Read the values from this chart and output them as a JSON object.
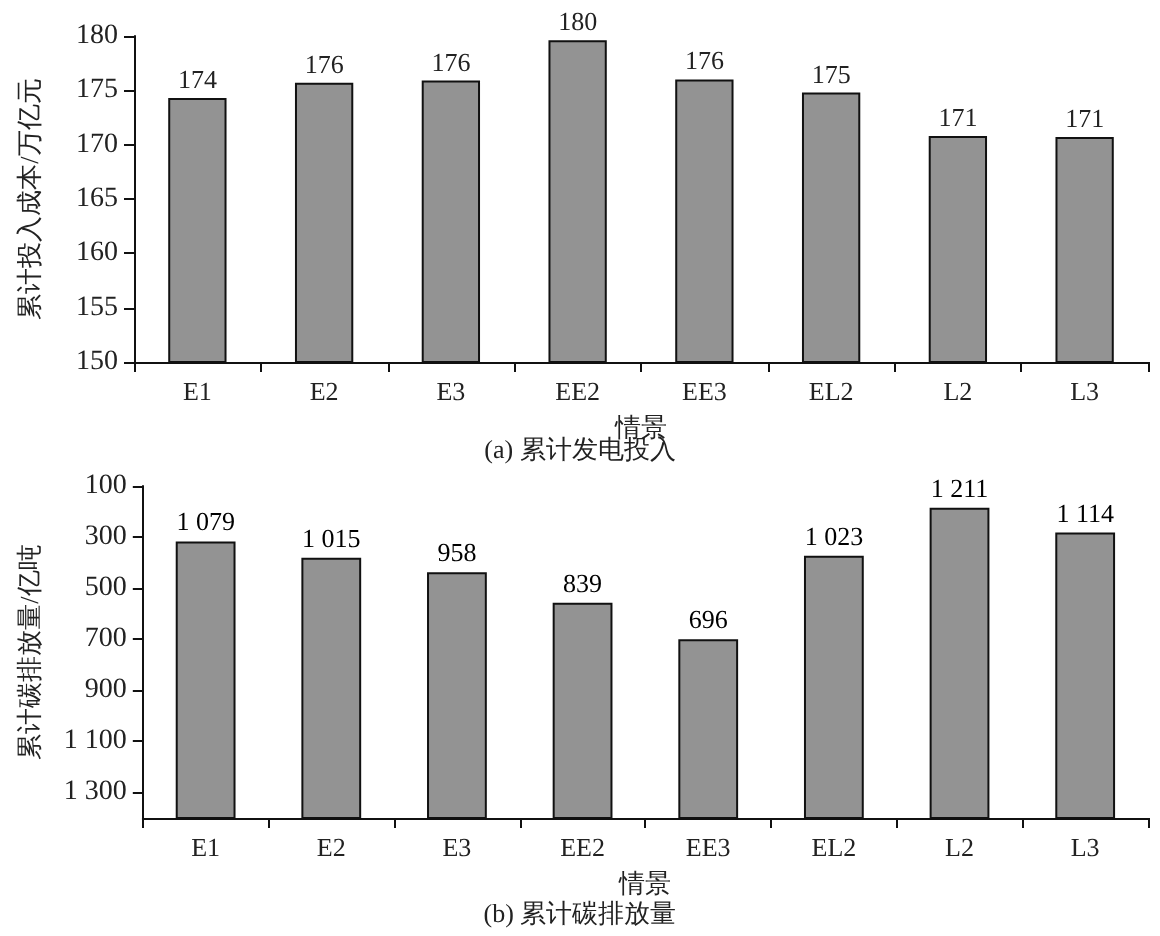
{
  "chart_data": [
    {
      "type": "bar",
      "title": "(a) 累计发电投入",
      "xlabel": "情景",
      "ylabel": "累计投入成本/万亿元",
      "categories": [
        "E1",
        "E2",
        "E3",
        "EE2",
        "EE3",
        "EL2",
        "L2",
        "L3"
      ],
      "values": [
        174.3,
        175.7,
        175.9,
        179.6,
        176.0,
        174.8,
        170.8,
        170.7
      ],
      "value_labels": [
        "174",
        "176",
        "176",
        "180",
        "176",
        "175",
        "171",
        "171"
      ],
      "color": "#939393",
      "ylim": [
        150,
        180
      ],
      "yticks": [
        150,
        155,
        160,
        165,
        170,
        175,
        180
      ]
    },
    {
      "type": "bar",
      "title": "(b) 累计碳排放量",
      "xlabel": "情景",
      "ylabel": "累计碳排放量/亿吨",
      "categories": [
        "E1",
        "E2",
        "E3",
        "EE2",
        "EE3",
        "EL2",
        "L2",
        "L3"
      ],
      "base": [
        1400,
        1400,
        1400,
        1400,
        1400,
        1400,
        1400,
        1400
      ],
      "values": [
        -1079,
        -1015,
        -958,
        -839,
        -696,
        -1023,
        -1211,
        -1114
      ],
      "value_labels": [
        "1 079",
        "1 015",
        "958",
        "839",
        "696",
        "1 023",
        "1 211",
        "1 114"
      ],
      "color": "#939393",
      "ylim": [
        1400,
        100
      ],
      "yticks": [
        100,
        300,
        500,
        700,
        900,
        {
          "value": 1100,
          "label": "1 100"
        },
        {
          "value": 1300,
          "label": "1 300"
        }
      ]
    }
  ]
}
